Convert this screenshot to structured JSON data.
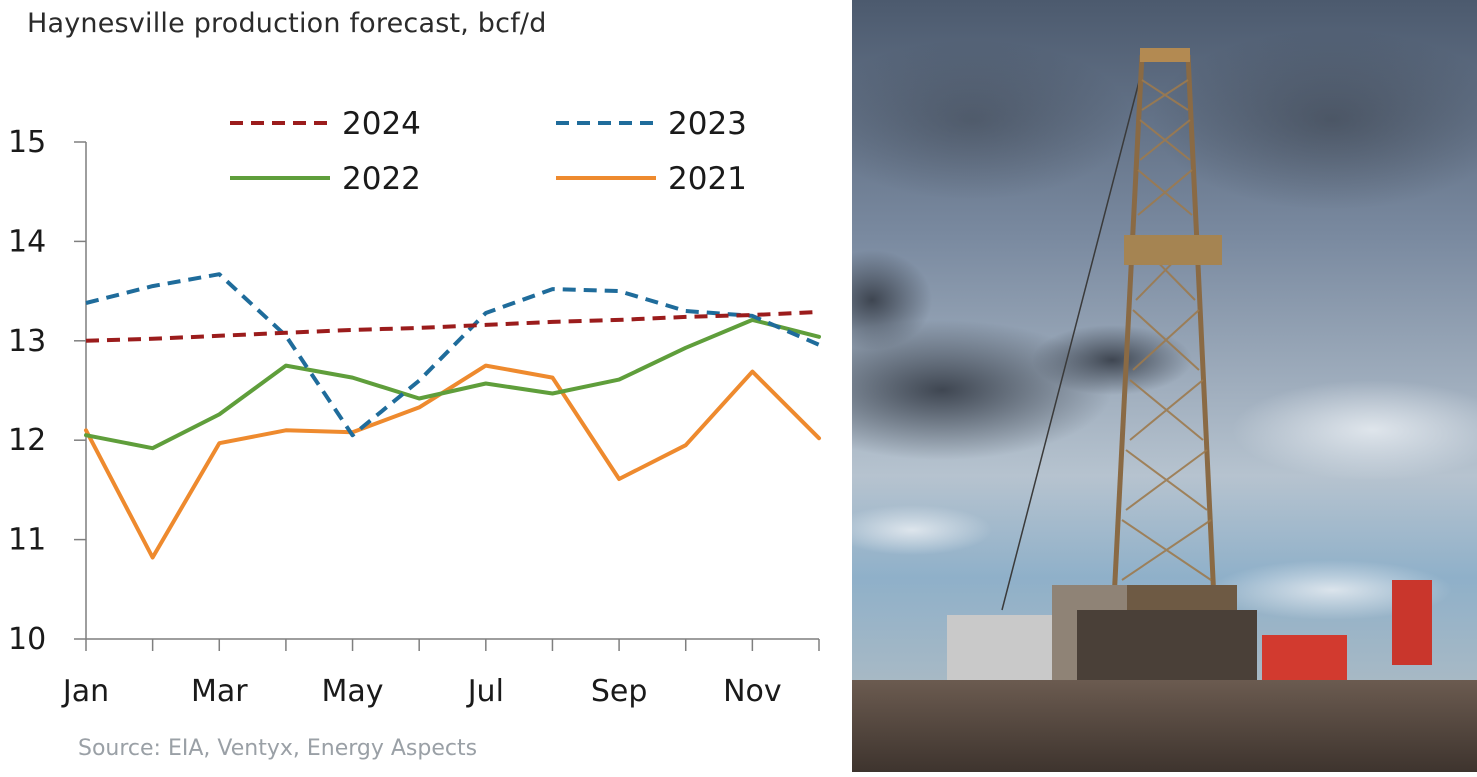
{
  "chart_data": {
    "type": "line",
    "title": "Haynesville production forecast, bcf/d",
    "source": "Source: EIA, Ventyx, Energy Aspects",
    "xlabel": "",
    "ylabel": "",
    "ylim": [
      10,
      15
    ],
    "yticks": [
      10,
      11,
      12,
      13,
      14,
      15
    ],
    "x": [
      1,
      2,
      3,
      4,
      5,
      6,
      7,
      8,
      9,
      10,
      11,
      12
    ],
    "xtick_labels": [
      "Jan",
      "",
      "Mar",
      "",
      "May",
      "",
      "Jul",
      "",
      "Sep",
      "",
      "Nov",
      ""
    ],
    "grid": false,
    "legend": "top",
    "series": [
      {
        "name": "2024",
        "style": "dashed",
        "color": "#9b1c1c",
        "values": [
          13.0,
          13.02,
          13.05,
          13.08,
          13.11,
          13.13,
          13.16,
          13.19,
          13.21,
          13.24,
          13.26,
          13.29
        ]
      },
      {
        "name": "2023",
        "style": "dashed",
        "color": "#1f6c9b",
        "values": [
          13.38,
          13.55,
          13.67,
          13.05,
          12.05,
          12.6,
          13.28,
          13.52,
          13.5,
          13.3,
          13.25,
          12.96
        ]
      },
      {
        "name": "2022",
        "style": "solid",
        "color": "#5f9e3b",
        "values": [
          12.05,
          11.92,
          12.26,
          12.75,
          12.63,
          12.42,
          12.57,
          12.47,
          12.61,
          12.93,
          13.21,
          13.04
        ]
      },
      {
        "name": "2021",
        "style": "solid",
        "color": "#ee8a2e",
        "values": [
          12.1,
          10.82,
          11.97,
          12.1,
          12.08,
          12.33,
          12.75,
          12.63,
          11.61,
          11.95,
          12.69,
          12.02
        ]
      }
    ]
  },
  "photo": {
    "subject": "drilling-rig-photo",
    "colors": {
      "sky": "#6d7f95",
      "cloud": "#3f4753",
      "ground": "#5a4c44",
      "rig": "#8a6a44"
    }
  }
}
